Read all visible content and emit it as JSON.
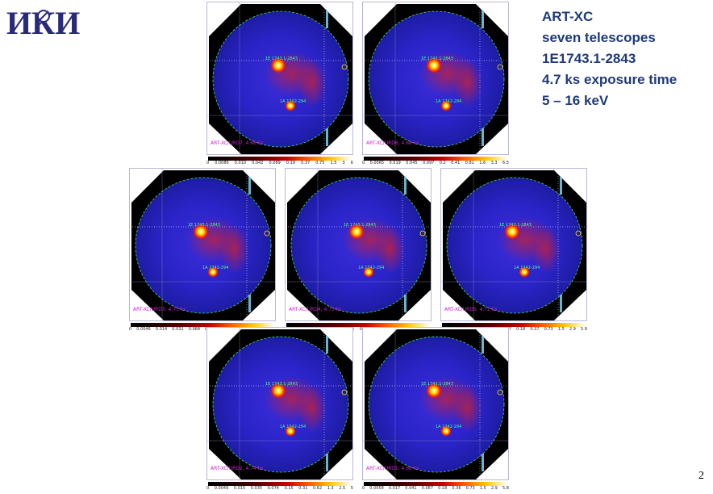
{
  "logo": {
    "text": "ИКИ"
  },
  "info": {
    "line1": "ART-XC",
    "line2": "seven telescopes",
    "line3": "1E1743.1-2843",
    "line4": "4.7 ks exposure time",
    "line5": "5 – 16 keV"
  },
  "page_number": "2",
  "panels": [
    {
      "label": "ART-XC/URD7, 4.66 ks",
      "source1": "1E 1743.1-2843",
      "source2": "1A 1742-294",
      "ticks": [
        "0",
        "0.0086",
        "0.010",
        "0.042",
        "0.089",
        "0.19",
        "0.37",
        "0.75",
        "1.5",
        "3",
        "6"
      ]
    },
    {
      "label": "ART-XC/URD6, 4.68 ks",
      "source1": "1E 1743.1-2843",
      "source2": "1A 1742-294",
      "ticks": [
        "0",
        "0.0065",
        "0.019",
        "0.045",
        "0.097",
        "0.2",
        "0.41",
        "0.81",
        "1.6",
        "3.3",
        "6.5"
      ]
    },
    {
      "label": "ART-XC/URD3, 4.73 ks",
      "source1": "1E 1743.1-2843",
      "source2": "1A 1742-294",
      "ticks": [
        "0",
        "0.0046",
        "0.014",
        "0.032",
        "0.068",
        "0.14",
        "0.29",
        "0.58",
        "1.2",
        "2.3",
        "4.6"
      ]
    },
    {
      "label": "ART-XC/URD4, 4.73 ks",
      "source1": "1E 1743.1-2843",
      "source2": "1A 1742-294",
      "ticks": [
        "0",
        "0.0057",
        "0.017",
        "0.04",
        "0.085",
        "0.18",
        "0.36",
        "0.72",
        "1.4",
        "2.9",
        "5.7"
      ]
    },
    {
      "label": "ART-XC/URD5, 4.72 ks",
      "source1": "1E 1743.1-2843",
      "source2": "1A 1742-294",
      "ticks": [
        "0",
        "0.0058",
        "0.017",
        "0.041",
        "0.087",
        "0.18",
        "0.37",
        "0.73",
        "1.5",
        "2.9",
        "5.9"
      ]
    },
    {
      "label": "ART-XC/URD2, 4.74 ks",
      "source1": "1E 1743.1-2843",
      "source2": "1A 1742-294",
      "ticks": [
        "0",
        "0.0049",
        "0.015",
        "0.035",
        "0.074",
        "0.15",
        "0.31",
        "0.62",
        "1.3",
        "2.5",
        "5"
      ]
    },
    {
      "label": "ART-XC/URD1, 4.66 ks",
      "source1": "1E 1743.1-2843",
      "source2": "1A 1742-294",
      "ticks": [
        "0",
        "0.0058",
        "0.017",
        "0.041",
        "0.087",
        "0.18",
        "0.36",
        "0.73",
        "1.5",
        "2.9",
        "5.8"
      ]
    }
  ]
}
